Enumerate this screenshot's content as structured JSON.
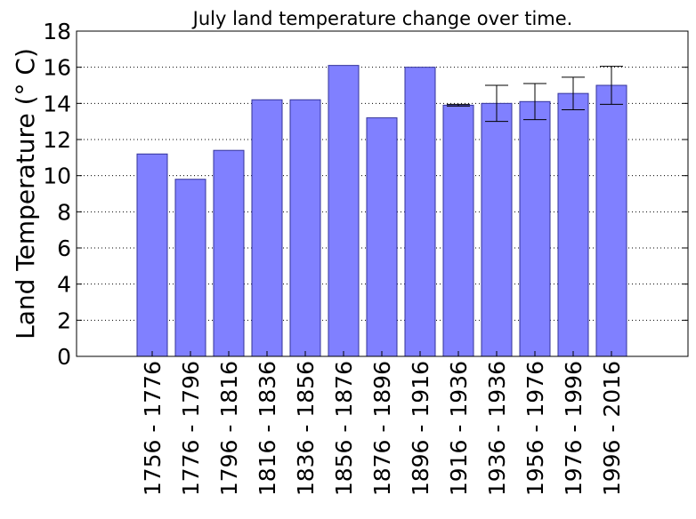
{
  "chart_data": {
    "type": "bar",
    "title": "July land temperature change over time.",
    "xlabel": "",
    "ylabel": "Land Temperature ($^\\circ$ C)",
    "ylabel_display": "Land Temperature (° C)",
    "ylim": [
      0,
      18
    ],
    "yticks": [
      0,
      2,
      4,
      6,
      8,
      10,
      12,
      14,
      16,
      18
    ],
    "grid": "horizontal-dotted",
    "bar_color": "#8080ff",
    "bar_edge_color": "#333399",
    "categories": [
      "1756 - 1776",
      "1776 - 1796",
      "1796 - 1816",
      "1816 - 1836",
      "1836 - 1856",
      "1856 - 1876",
      "1876 - 1896",
      "1896 - 1916",
      "1916 - 1936",
      "1936 - 1936",
      "1956 - 1976",
      "1976 - 1996",
      "1996 - 2016"
    ],
    "values": [
      11.2,
      9.8,
      11.4,
      14.2,
      14.2,
      16.1,
      13.2,
      16.0,
      13.9,
      14.0,
      14.1,
      14.55,
      15.0
    ],
    "errors": [
      0,
      0,
      0,
      0,
      0,
      0,
      0,
      0,
      0.05,
      1.0,
      1.0,
      0.9,
      1.05
    ]
  }
}
